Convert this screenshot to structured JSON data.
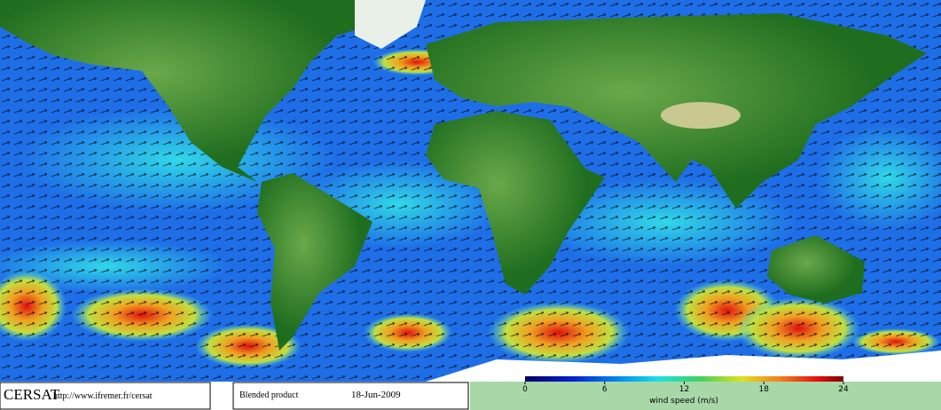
{
  "header": {
    "logo": "CERSAT",
    "url": "http://www.ifremer.fr/cersat"
  },
  "product": {
    "name": "Blended product",
    "date": "18-Jun-2009"
  },
  "colorbar": {
    "label": "wind speed (m/s)",
    "lim": [
      0,
      24
    ],
    "ticks": [
      0,
      6,
      12,
      18,
      24
    ]
  }
}
